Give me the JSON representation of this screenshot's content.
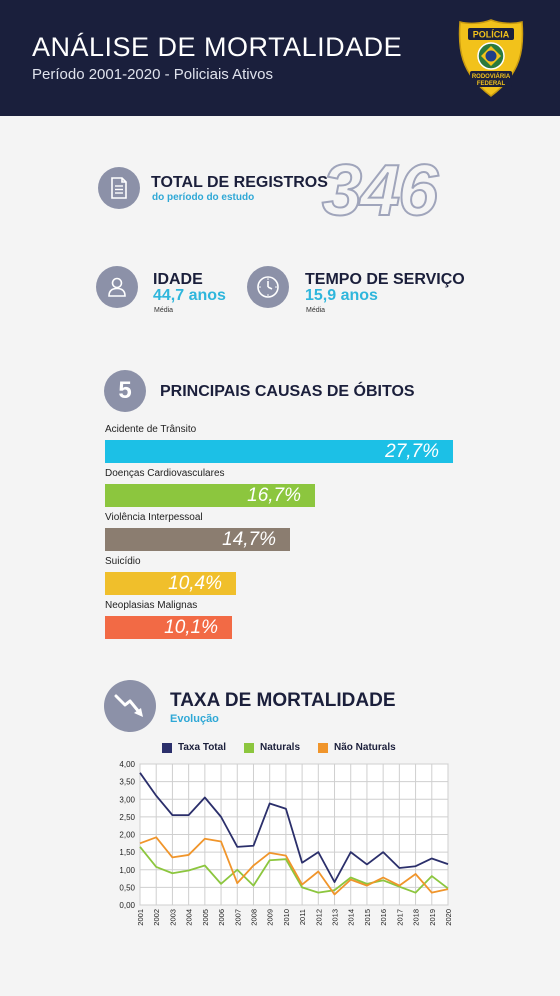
{
  "header": {
    "title": "ANÁLISE DE MORTALIDADE",
    "subtitle": "Período 2001-2020 - Policiais Ativos",
    "badge_top": "POLÍCIA",
    "badge_bottom_1": "RODOVIÁRIA",
    "badge_bottom_2": "FEDERAL"
  },
  "total": {
    "title": "TOTAL DE REGISTROS",
    "sub": "do período do estudo",
    "value": "346",
    "icon": "document-icon"
  },
  "age": {
    "title": "IDADE",
    "value": "44,7 anos",
    "note": "Média",
    "icon": "person-icon"
  },
  "service": {
    "title": "TEMPO DE SERVIÇO",
    "value": "15,9 anos",
    "note": "Média",
    "icon": "clock-icon"
  },
  "causes": {
    "number": "5",
    "title": "PRINCIPAIS CAUSAS DE ÓBITOS",
    "items": [
      {
        "label": "Acidente de Trânsito",
        "value": 27.7,
        "display": "27,7%",
        "color": "#1cc0e6"
      },
      {
        "label": "Doenças Cardiovasculares",
        "value": 16.7,
        "display": "16,7%",
        "color": "#8cc63e"
      },
      {
        "label": "Violência Interpessoal",
        "value": 14.7,
        "display": "14,7%",
        "color": "#8b7d70"
      },
      {
        "label": "Suicídio",
        "value": 10.4,
        "display": "10,4%",
        "color": "#f0bf2b"
      },
      {
        "label": "Neoplasias Malignas",
        "value": 10.1,
        "display": "10,1%",
        "color": "#f26a45"
      }
    ]
  },
  "mortality": {
    "title": "TAXA DE MORTALIDADE",
    "subtitle": "Evolução",
    "icon": "trend-down-icon"
  },
  "chart_data": {
    "type": "line",
    "x": [
      "2001",
      "2002",
      "2003",
      "2004",
      "2005",
      "2006",
      "2007",
      "2008",
      "2009",
      "2010",
      "2011",
      "2012",
      "2013",
      "2014",
      "2015",
      "2016",
      "2017",
      "2018",
      "2019",
      "2020"
    ],
    "ylim": [
      0,
      4
    ],
    "yticks": [
      "0,00",
      "0,50",
      "1,00",
      "1,50",
      "2,00",
      "2,50",
      "3,00",
      "3,50",
      "4,00"
    ],
    "grid": true,
    "legend": "top",
    "series": [
      {
        "name": "Taxa Total",
        "color": "#2b2f6b",
        "values": [
          3.75,
          3.1,
          2.55,
          2.55,
          3.05,
          2.5,
          1.65,
          1.68,
          2.88,
          2.73,
          1.2,
          1.5,
          0.65,
          1.5,
          1.15,
          1.5,
          1.05,
          1.1,
          1.32,
          1.16
        ]
      },
      {
        "name": "Naturals",
        "color": "#8cc63e",
        "values": [
          1.65,
          1.08,
          0.9,
          0.98,
          1.12,
          0.6,
          1.0,
          0.55,
          1.27,
          1.3,
          0.5,
          0.35,
          0.42,
          0.78,
          0.6,
          0.7,
          0.52,
          0.35,
          0.82,
          0.47
        ]
      },
      {
        "name": "Não Naturals",
        "color": "#f0952b",
        "values": [
          1.75,
          1.92,
          1.35,
          1.42,
          1.88,
          1.8,
          0.62,
          1.12,
          1.48,
          1.4,
          0.58,
          0.95,
          0.3,
          0.72,
          0.55,
          0.78,
          0.55,
          0.88,
          0.35,
          0.45
        ]
      }
    ]
  }
}
